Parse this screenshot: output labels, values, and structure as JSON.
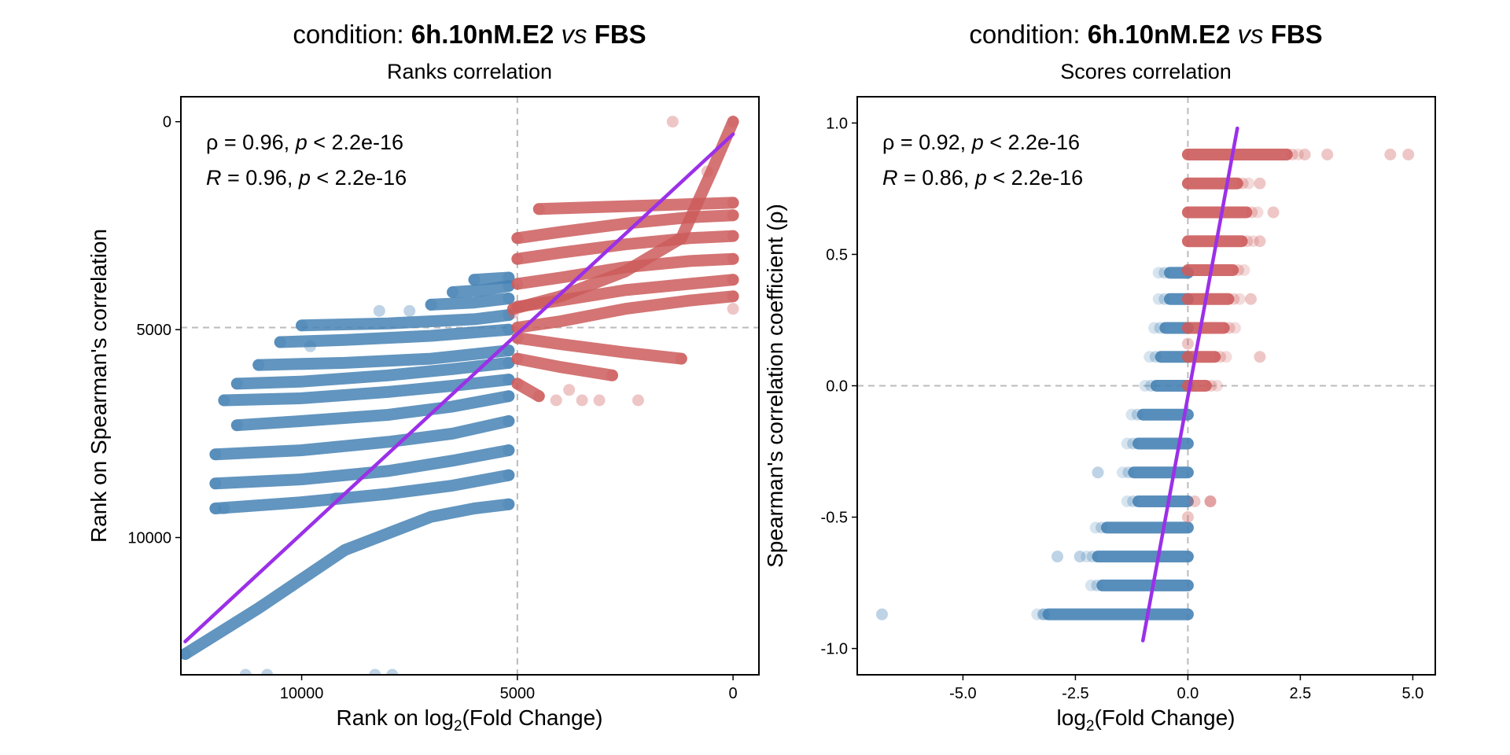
{
  "colors": {
    "up": "#CD5C5C",
    "down": "#4682B4",
    "fit": "#9B30E8",
    "refline": "#BBBBBB"
  },
  "chart_data": [
    {
      "type": "scatter",
      "title_prefix": "condition:",
      "title_group1": "6h.10nM.E2",
      "title_vs": "vs",
      "title_group2": "FBS",
      "subtitle": "Ranks correlation",
      "xlabel": "Rank on log",
      "xlabel_sub": "2",
      "xlabel_suffix": "(Fold Change)",
      "ylabel": "Rank on Spearman's correlation",
      "x_reversed": true,
      "y_reversed": true,
      "xlim": [
        12800,
        -600
      ],
      "ylim": [
        -600,
        13300
      ],
      "xticks": [
        {
          "v": 10000,
          "label": "10000"
        },
        {
          "v": 5000,
          "label": "5000"
        },
        {
          "v": 0,
          "label": "0"
        }
      ],
      "yticks": [
        {
          "v": 0,
          "label": "0"
        },
        {
          "v": 5000,
          "label": "5000"
        },
        {
          "v": 10000,
          "label": "10000"
        }
      ],
      "vline": 5000,
      "hline": 4950,
      "stats": [
        {
          "sym": "ρ",
          "eq": " = 0.96, ",
          "p": "p",
          "rest": " < 2.2e-16"
        },
        {
          "sym": "R",
          "eq": " = 0.96, ",
          "p": "p",
          "rest": " < 2.2e-16"
        }
      ],
      "fit_line": [
        [
          12700,
          12500
        ],
        [
          0,
          300
        ]
      ],
      "series": [
        {
          "group": "down",
          "lines": [
            {
              "x": [
                12700,
                11000,
                9000,
                7000,
                6000,
                5200
              ],
              "y": [
                12800,
                11700,
                10300,
                9500,
                9300,
                9200
              ]
            },
            {
              "x": [
                12000,
                10000,
                8000,
                6500,
                5200
              ],
              "y": [
                9300,
                9150,
                8950,
                8750,
                8500
              ]
            },
            {
              "x": [
                12000,
                10000,
                8000,
                6500,
                5200
              ],
              "y": [
                8700,
                8600,
                8400,
                8150,
                7900
              ]
            },
            {
              "x": [
                12000,
                10000,
                8000,
                6500,
                5200
              ],
              "y": [
                8000,
                7900,
                7700,
                7500,
                7200
              ]
            },
            {
              "x": [
                11500,
                10000,
                8000,
                6500,
                5200
              ],
              "y": [
                7300,
                7200,
                7050,
                6850,
                6600
              ]
            },
            {
              "x": [
                11800,
                10000,
                8000,
                6500,
                5200
              ],
              "y": [
                6700,
                6650,
                6500,
                6350,
                6200
              ]
            },
            {
              "x": [
                11500,
                10000,
                8000,
                6500,
                5200
              ],
              "y": [
                6300,
                6250,
                6100,
                5950,
                5800
              ]
            },
            {
              "x": [
                11000,
                9000,
                7000,
                5200
              ],
              "y": [
                5850,
                5800,
                5700,
                5500
              ]
            },
            {
              "x": [
                10500,
                9000,
                7000,
                5200
              ],
              "y": [
                5300,
                5250,
                5150,
                5000
              ]
            },
            {
              "x": [
                10000,
                8000,
                6000,
                5200
              ],
              "y": [
                4900,
                4850,
                4750,
                4650
              ]
            },
            {
              "x": [
                7000,
                6000,
                5200
              ],
              "y": [
                4400,
                4350,
                4250
              ]
            },
            {
              "x": [
                6500,
                5800,
                5200
              ],
              "y": [
                4100,
                4050,
                3950
              ]
            },
            {
              "x": [
                6000,
                5200
              ],
              "y": [
                3800,
                3750
              ]
            }
          ],
          "points": [
            [
              11300,
              13300
            ],
            [
              10800,
              13300
            ],
            [
              8300,
              13300
            ],
            [
              7900,
              13300
            ],
            [
              9200,
              9050
            ],
            [
              8200,
              4550
            ],
            [
              7500,
              4550
            ],
            [
              9800,
              5400
            ],
            [
              11800,
              9300
            ]
          ]
        },
        {
          "group": "up",
          "lines": [
            {
              "x": [
                5100,
                4000,
                2500,
                1200,
                500,
                0
              ],
              "y": [
                4500,
                4200,
                3600,
                2800,
                1200,
                0
              ]
            },
            {
              "x": [
                5000,
                4000,
                2500,
                1000,
                0
              ],
              "y": [
                4950,
                4800,
                4500,
                4300,
                4200
              ]
            },
            {
              "x": [
                5000,
                4000,
                2500,
                1000,
                0
              ],
              "y": [
                4450,
                4300,
                4050,
                3900,
                3800
              ]
            },
            {
              "x": [
                5000,
                4000,
                2500,
                1000,
                0
              ],
              "y": [
                3900,
                3750,
                3500,
                3350,
                3300
              ]
            },
            {
              "x": [
                5000,
                4000,
                2500,
                1000,
                0
              ],
              "y": [
                3300,
                3150,
                2950,
                2800,
                2750
              ]
            },
            {
              "x": [
                5000,
                4000,
                2500,
                1000,
                0
              ],
              "y": [
                2800,
                2650,
                2450,
                2300,
                2250
              ]
            },
            {
              "x": [
                4500,
                3000,
                1500,
                0
              ],
              "y": [
                2100,
                2050,
                2000,
                1950
              ]
            },
            {
              "x": [
                5000,
                4000,
                2500,
                1200
              ],
              "y": [
                5200,
                5350,
                5550,
                5700
              ]
            },
            {
              "x": [
                5000,
                4000,
                2800
              ],
              "y": [
                5700,
                5900,
                6100
              ]
            },
            {
              "x": [
                5000,
                4500
              ],
              "y": [
                6300,
                6600
              ]
            }
          ],
          "points": [
            [
              1400,
              0
            ],
            [
              0,
              4500
            ],
            [
              3500,
              6700
            ],
            [
              3100,
              6700
            ],
            [
              2200,
              6700
            ],
            [
              4100,
              6700
            ],
            [
              5100,
              4600
            ],
            [
              600,
              1200
            ],
            [
              3800,
              6450
            ]
          ]
        }
      ]
    },
    {
      "type": "scatter",
      "title_prefix": "condition:",
      "title_group1": "6h.10nM.E2",
      "title_vs": "vs",
      "title_group2": "FBS",
      "subtitle": "Scores correlation",
      "xlabel": "log",
      "xlabel_sub": "2",
      "xlabel_suffix": "(Fold Change)",
      "ylabel": "Spearman's correlation coefficient (ρ)",
      "x_reversed": false,
      "y_reversed": false,
      "xlim": [
        -7.35,
        5.5
      ],
      "ylim": [
        -1.1,
        1.1
      ],
      "xticks": [
        {
          "v": -5,
          "label": "-5.0"
        },
        {
          "v": -2.5,
          "label": "-2.5"
        },
        {
          "v": 0,
          "label": "0.0"
        },
        {
          "v": 2.5,
          "label": "2.5"
        },
        {
          "v": 5,
          "label": "5.0"
        }
      ],
      "yticks": [
        {
          "v": 1,
          "label": "1.0"
        },
        {
          "v": 0.5,
          "label": "0.5"
        },
        {
          "v": 0,
          "label": "0.0"
        },
        {
          "v": -0.5,
          "label": "-0.5"
        },
        {
          "v": -1,
          "label": "-1.0"
        }
      ],
      "vline": 0,
      "hline": 0,
      "stats": [
        {
          "sym": "ρ",
          "eq": " = 0.92, ",
          "p": "p",
          "rest": " < 2.2e-16"
        },
        {
          "sym": "R",
          "eq": " = 0.86, ",
          "p": "p",
          "rest": " < 2.2e-16"
        }
      ],
      "fit_line": [
        [
          -1.0,
          -0.97
        ],
        [
          1.1,
          0.98
        ]
      ],
      "series": [
        {
          "group": "down",
          "rows": [
            {
              "y": -0.87,
              "x0": -3.1,
              "x1": 0
            },
            {
              "y": -0.76,
              "x0": -1.9,
              "x1": 0
            },
            {
              "y": -0.65,
              "x0": -2.0,
              "x1": 0
            },
            {
              "y": -0.54,
              "x0": -1.8,
              "x1": 0
            },
            {
              "y": -0.44,
              "x0": -1.1,
              "x1": 0
            },
            {
              "y": -0.33,
              "x0": -1.2,
              "x1": 0
            },
            {
              "y": -0.22,
              "x0": -1.1,
              "x1": 0
            },
            {
              "y": -0.11,
              "x0": -1.0,
              "x1": 0
            },
            {
              "y": 0,
              "x0": -0.7,
              "x1": 0
            },
            {
              "y": 0.11,
              "x0": -0.6,
              "x1": 0
            },
            {
              "y": 0.22,
              "x0": -0.5,
              "x1": 0
            },
            {
              "y": 0.33,
              "x0": -0.4,
              "x1": 0
            },
            {
              "y": 0.43,
              "x0": -0.4,
              "x1": 0
            }
          ],
          "points": [
            [
              -6.8,
              -0.87
            ],
            [
              -2.9,
              -0.65
            ],
            [
              -2.0,
              -0.33
            ],
            [
              -3.2,
              -0.87
            ],
            [
              -2.4,
              -0.65
            ]
          ]
        },
        {
          "group": "up",
          "rows": [
            {
              "y": 0.88,
              "x0": 0,
              "x1": 2.2
            },
            {
              "y": 0.77,
              "x0": 0,
              "x1": 1.1
            },
            {
              "y": 0.66,
              "x0": 0,
              "x1": 1.3
            },
            {
              "y": 0.55,
              "x0": 0,
              "x1": 1.2
            },
            {
              "y": 0.44,
              "x0": 0,
              "x1": 1.0
            },
            {
              "y": 0.33,
              "x0": 0,
              "x1": 0.9
            },
            {
              "y": 0.22,
              "x0": 0,
              "x1": 0.8
            },
            {
              "y": 0.11,
              "x0": 0,
              "x1": 0.6
            },
            {
              "y": 0,
              "x0": 0,
              "x1": 0.4
            }
          ],
          "points": [
            [
              4.9,
              0.88
            ],
            [
              4.5,
              0.88
            ],
            [
              3.1,
              0.88
            ],
            [
              2.6,
              0.88
            ],
            [
              1.6,
              0.77
            ],
            [
              1.9,
              0.66
            ],
            [
              1.6,
              0.55
            ],
            [
              1.4,
              0.33
            ],
            [
              1.6,
              0.11
            ],
            [
              0.5,
              -0.44
            ],
            [
              0.5,
              -0.44
            ],
            [
              0,
              0.16
            ],
            [
              0.15,
              -0.44
            ],
            [
              0,
              -0.5
            ]
          ]
        }
      ]
    }
  ]
}
